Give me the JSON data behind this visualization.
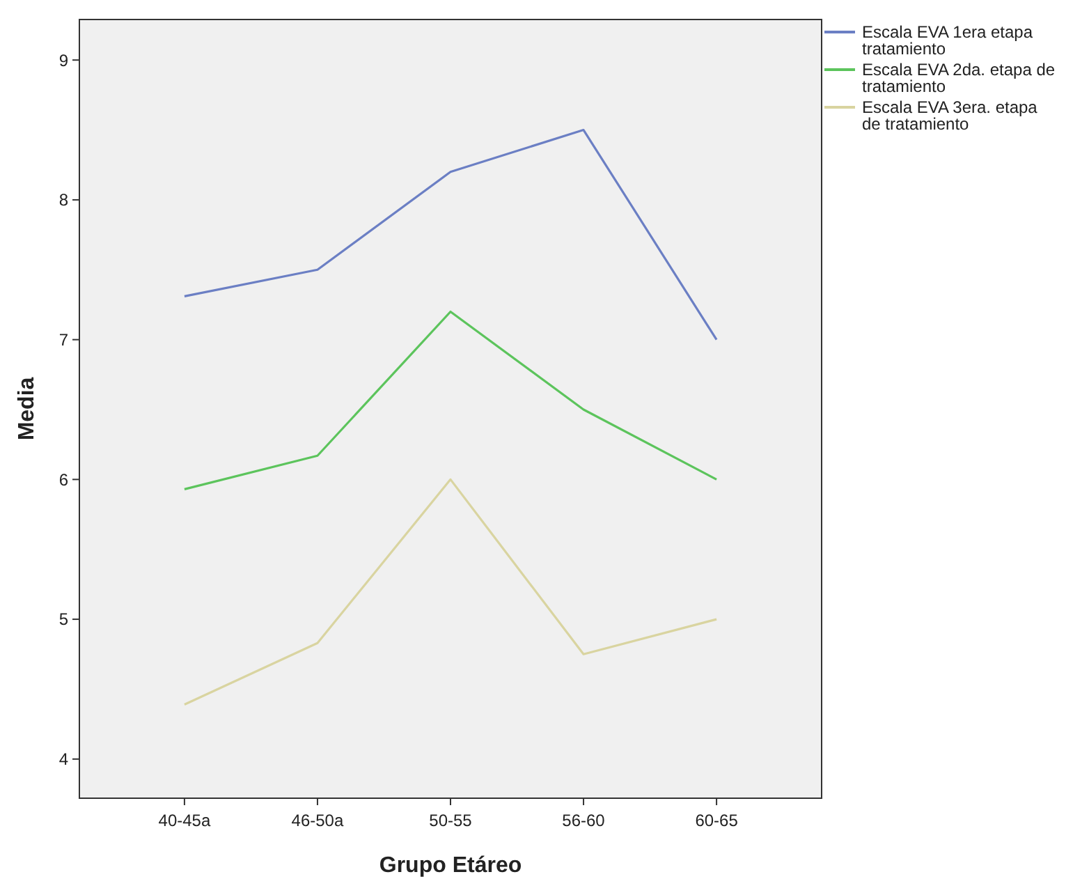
{
  "chart_data": {
    "type": "line",
    "xlabel": "Grupo Etáreo",
    "ylabel": "Media",
    "categories": [
      "40-45a",
      "46-50a",
      "50-55",
      "56-60",
      "60-65"
    ],
    "series": [
      {
        "name": "Escala EVA 1era etapa tratamiento",
        "color": "#6b7fc4",
        "values": [
          7.31,
          7.5,
          8.2,
          8.5,
          7.0
        ]
      },
      {
        "name": "Escala EVA 2da. etapa de tratamiento",
        "color": "#5cc45c",
        "values": [
          5.93,
          6.17,
          7.2,
          6.5,
          6.0
        ]
      },
      {
        "name": "Escala EVA 3era. etapa de tratamiento",
        "color": "#d9d4a0",
        "values": [
          4.39,
          4.83,
          6.0,
          4.75,
          5.0
        ]
      }
    ],
    "ylim": [
      3.72,
      9.29
    ],
    "yticks": [
      4,
      5,
      6,
      7,
      8,
      9
    ],
    "grid": false,
    "legend": "top right",
    "marker": "none"
  }
}
